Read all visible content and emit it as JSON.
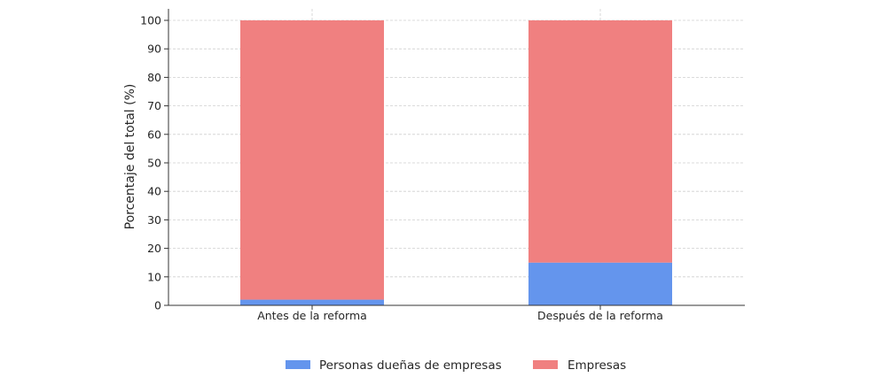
{
  "chart_data": {
    "type": "bar",
    "stacked": true,
    "categories": [
      "Antes de la reforma",
      "Después de la reforma"
    ],
    "series": [
      {
        "name": "Personas dueñas de empresas",
        "values": [
          2,
          15
        ],
        "color": "#6495ED"
      },
      {
        "name": "Empresas",
        "values": [
          98,
          85
        ],
        "color": "#F08080"
      }
    ],
    "title": "",
    "xlabel": "",
    "ylabel": "Porcentaje del total (%)",
    "ylim": [
      0,
      100
    ],
    "yticks": [
      0,
      10,
      20,
      30,
      40,
      50,
      60,
      70,
      80,
      90,
      100
    ],
    "grid": true,
    "legend_position": "bottom-center"
  }
}
